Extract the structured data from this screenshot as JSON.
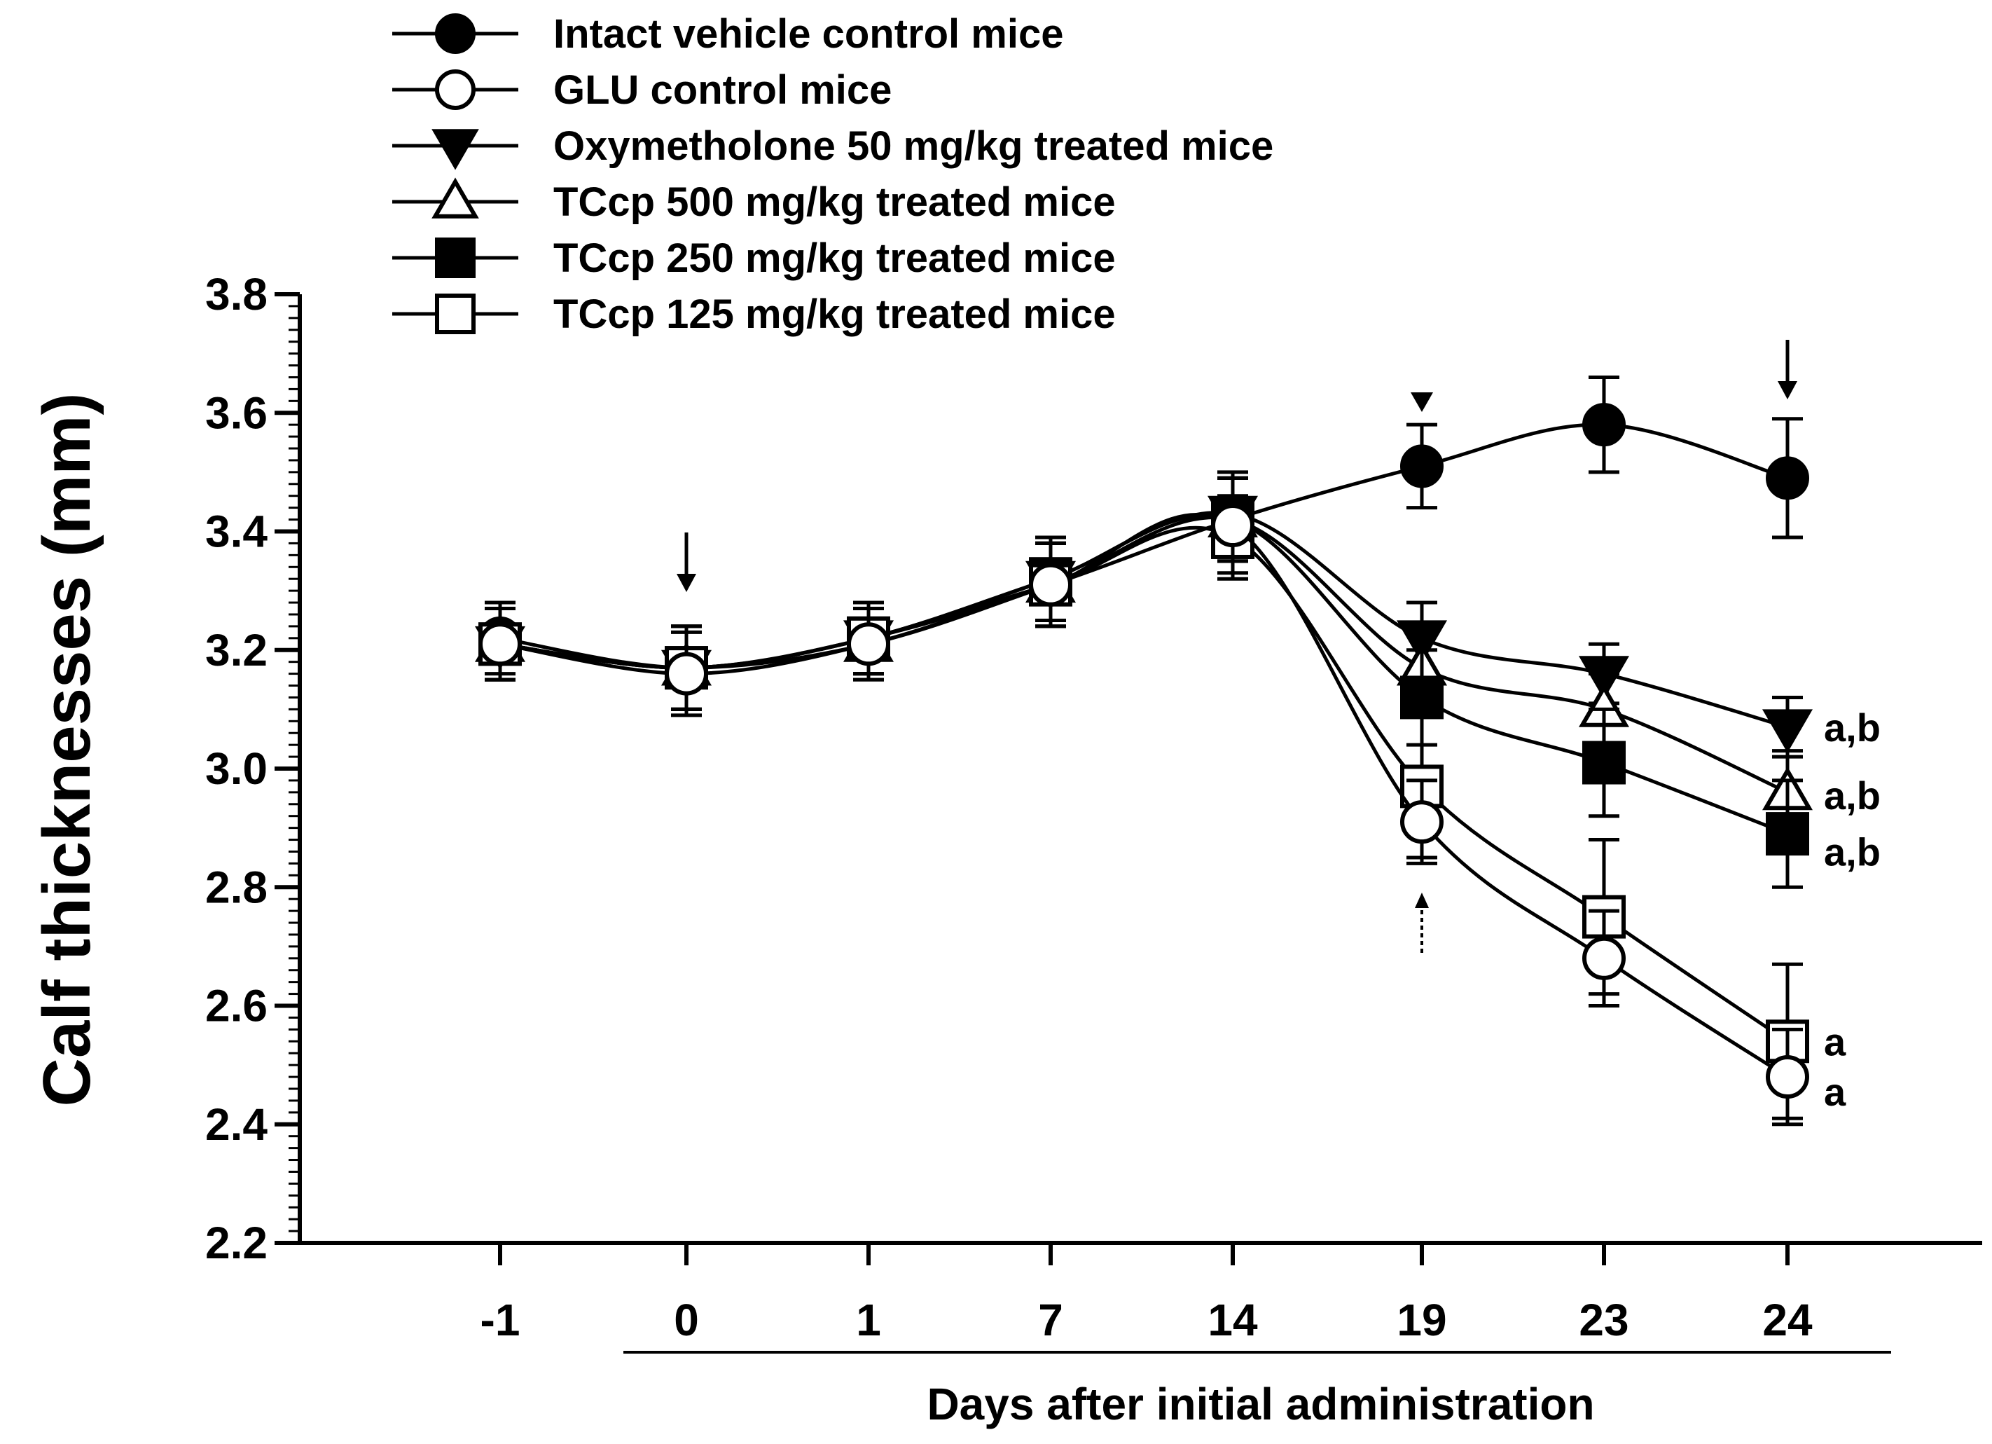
{
  "chart_data": {
    "type": "line",
    "title": "",
    "xlabel": "Days after initial administration",
    "ylabel": "Calf thicknesses (mm)",
    "categories": [
      "-1",
      "0",
      "1",
      "7",
      "14",
      "19",
      "23",
      "24"
    ],
    "ylim": [
      2.2,
      3.8
    ],
    "yticks": [
      "2.2",
      "2.4",
      "2.6",
      "2.8",
      "3.0",
      "3.2",
      "3.4",
      "3.6",
      "3.8"
    ],
    "grid": false,
    "legend_position": "top",
    "series": [
      {
        "name": "Intact vehicle control mice",
        "marker": "filled-circle",
        "values": [
          3.22,
          3.17,
          3.22,
          3.31,
          3.42,
          3.51,
          3.58,
          3.49
        ],
        "errors": [
          0.06,
          0.07,
          0.06,
          0.07,
          0.07,
          0.07,
          0.08,
          0.1
        ]
      },
      {
        "name": "GLU control mice",
        "marker": "open-circle",
        "values": [
          3.21,
          3.16,
          3.21,
          3.31,
          3.41,
          2.91,
          2.68,
          2.48
        ],
        "errors": [
          0.06,
          0.07,
          0.06,
          0.07,
          0.08,
          0.07,
          0.08,
          0.08
        ]
      },
      {
        "name": "Oxymetholone 50 mg/kg treated mice",
        "marker": "filled-triangle-down",
        "values": [
          3.21,
          3.17,
          3.22,
          3.32,
          3.43,
          3.22,
          3.16,
          3.07
        ],
        "errors": [
          0.06,
          0.07,
          0.06,
          0.07,
          0.07,
          0.06,
          0.05,
          0.05
        ]
      },
      {
        "name": "TCcp 500 mg/kg treated mice",
        "marker": "open-triangle-up",
        "values": [
          3.21,
          3.17,
          3.21,
          3.31,
          3.42,
          3.17,
          3.1,
          2.96
        ],
        "errors": [
          0.06,
          0.07,
          0.06,
          0.07,
          0.07,
          0.07,
          0.06,
          0.07
        ]
      },
      {
        "name": "TCcp 250 mg/kg treated mice",
        "marker": "filled-square",
        "values": [
          3.21,
          3.17,
          3.22,
          3.32,
          3.42,
          3.12,
          3.01,
          2.89
        ],
        "errors": [
          0.06,
          0.07,
          0.06,
          0.07,
          0.07,
          0.08,
          0.09,
          0.09
        ]
      },
      {
        "name": "TCcp 125 mg/kg treated mice",
        "marker": "open-square",
        "values": [
          3.21,
          3.17,
          3.22,
          3.31,
          3.39,
          2.97,
          2.75,
          2.54
        ],
        "errors": [
          0.06,
          0.07,
          0.06,
          0.07,
          0.07,
          0.12,
          0.13,
          0.13
        ]
      }
    ],
    "annotations": {
      "oxymetholone_24": "a,b",
      "tccp500_24": "a,b",
      "tccp250_24": "a,b",
      "tccp125_24": "a",
      "glu_24": "a"
    }
  }
}
